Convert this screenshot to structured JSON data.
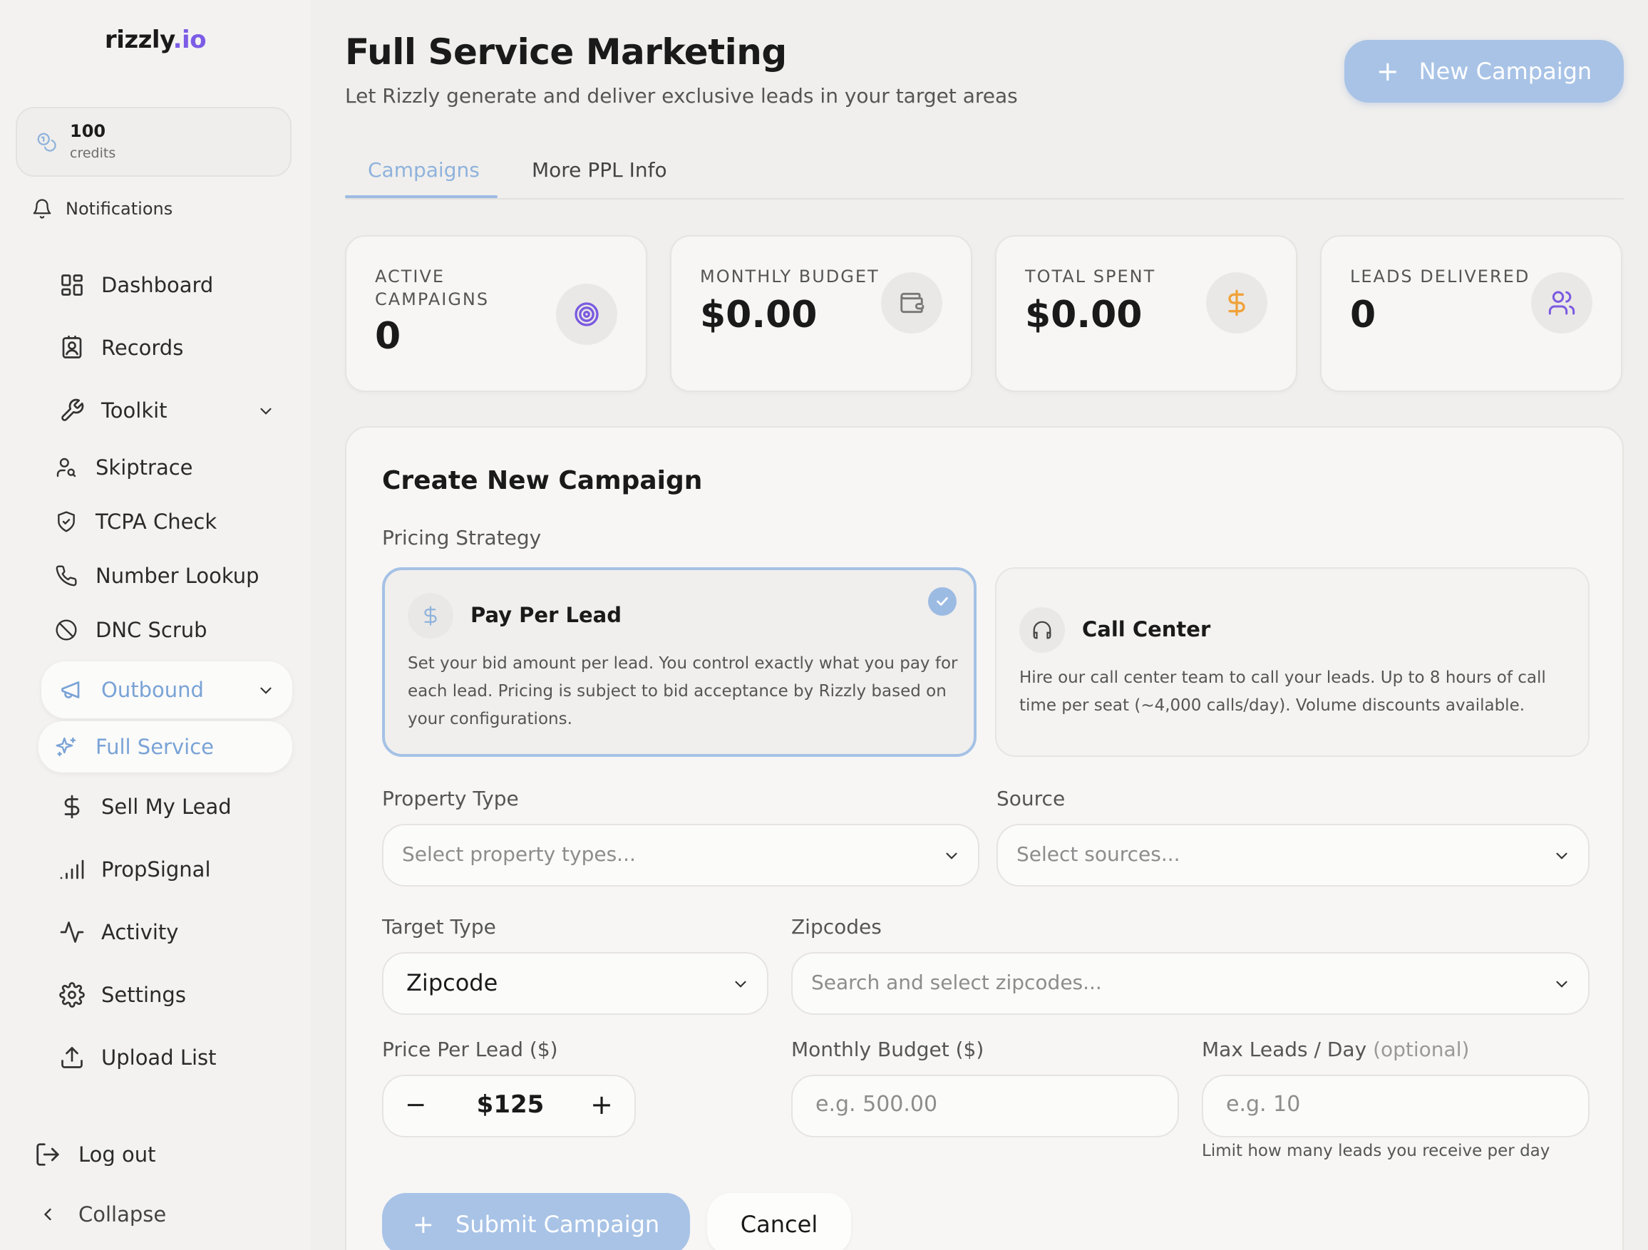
{
  "colors": {
    "accent_blue": "#a8c3e6",
    "brand_purple": "#7c5ce6",
    "dollar_orange": "#f0a23a",
    "target_purple": "#7a5ae0"
  },
  "sidebar": {
    "logo_main": "rizzly",
    "logo_accent": ".io",
    "credits": {
      "amount": "100",
      "label": "credits"
    },
    "notifications": "Notifications",
    "items": [
      {
        "label": "Dashboard",
        "icon": "grid-icon"
      },
      {
        "label": "Records",
        "icon": "contact-book-icon"
      },
      {
        "label": "Toolkit",
        "icon": "wrench-icon"
      },
      {
        "label": "Skiptrace",
        "icon": "user-search-icon"
      },
      {
        "label": "TCPA Check",
        "icon": "shield-check-icon"
      },
      {
        "label": "Number Lookup",
        "icon": "phone-icon"
      },
      {
        "label": "DNC Scrub",
        "icon": "ban-icon"
      },
      {
        "label": "Outbound",
        "icon": "megaphone-icon"
      },
      {
        "label": "Full Service",
        "icon": "sparkles-icon"
      },
      {
        "label": "Sell My Lead",
        "icon": "dollar-icon"
      },
      {
        "label": "PropSignal",
        "icon": "signal-bars-icon"
      },
      {
        "label": "Activity",
        "icon": "activity-icon"
      },
      {
        "label": "Settings",
        "icon": "gear-icon"
      },
      {
        "label": "Upload List",
        "icon": "upload-icon"
      }
    ],
    "logout": "Log out",
    "collapse": "Collapse"
  },
  "header": {
    "title": "Full Service Marketing",
    "subtitle": "Let Rizzly generate and deliver exclusive leads in your target areas",
    "new_campaign": "New Campaign"
  },
  "tabs": [
    "Campaigns",
    "More PPL Info"
  ],
  "stats": [
    {
      "label": "ACTIVE CAMPAIGNS",
      "value": "0",
      "icon": "target-icon"
    },
    {
      "label": "MONTHLY BUDGET",
      "value": "$0.00",
      "icon": "wallet-icon"
    },
    {
      "label": "TOTAL SPENT",
      "value": "$0.00",
      "icon": "dollar-icon"
    },
    {
      "label": "LEADS DELIVERED",
      "value": "0",
      "icon": "users-icon"
    }
  ],
  "form": {
    "title": "Create New Campaign",
    "pricing_label": "Pricing Strategy",
    "strategies": [
      {
        "title": "Pay Per Lead",
        "description": "Set your bid amount per lead. You control exactly what you pay for each lead. Pricing is subject to bid acceptance by Rizzly based on your configurations.",
        "selected": true
      },
      {
        "title": "Call Center",
        "description": "Hire our call center team to call your leads. Up to 8 hours of call time per seat (~4,000 calls/day). Volume discounts available.",
        "selected": false
      }
    ],
    "property_type": {
      "label": "Property Type",
      "placeholder": "Select property types..."
    },
    "source": {
      "label": "Source",
      "placeholder": "Select sources..."
    },
    "target_type": {
      "label": "Target Type",
      "value": "Zipcode"
    },
    "zipcodes": {
      "label": "Zipcodes",
      "placeholder": "Search and select zipcodes..."
    },
    "price_per_lead": {
      "label": "Price Per Lead ($)",
      "value": "$125"
    },
    "monthly_budget": {
      "label": "Monthly Budget ($)",
      "placeholder": "e.g. 500.00"
    },
    "max_leads": {
      "label": "Max Leads / Day",
      "optional": "(optional)",
      "placeholder": "e.g. 10",
      "hint": "Limit how many leads you receive per day"
    },
    "submit": "Submit Campaign",
    "cancel": "Cancel"
  }
}
